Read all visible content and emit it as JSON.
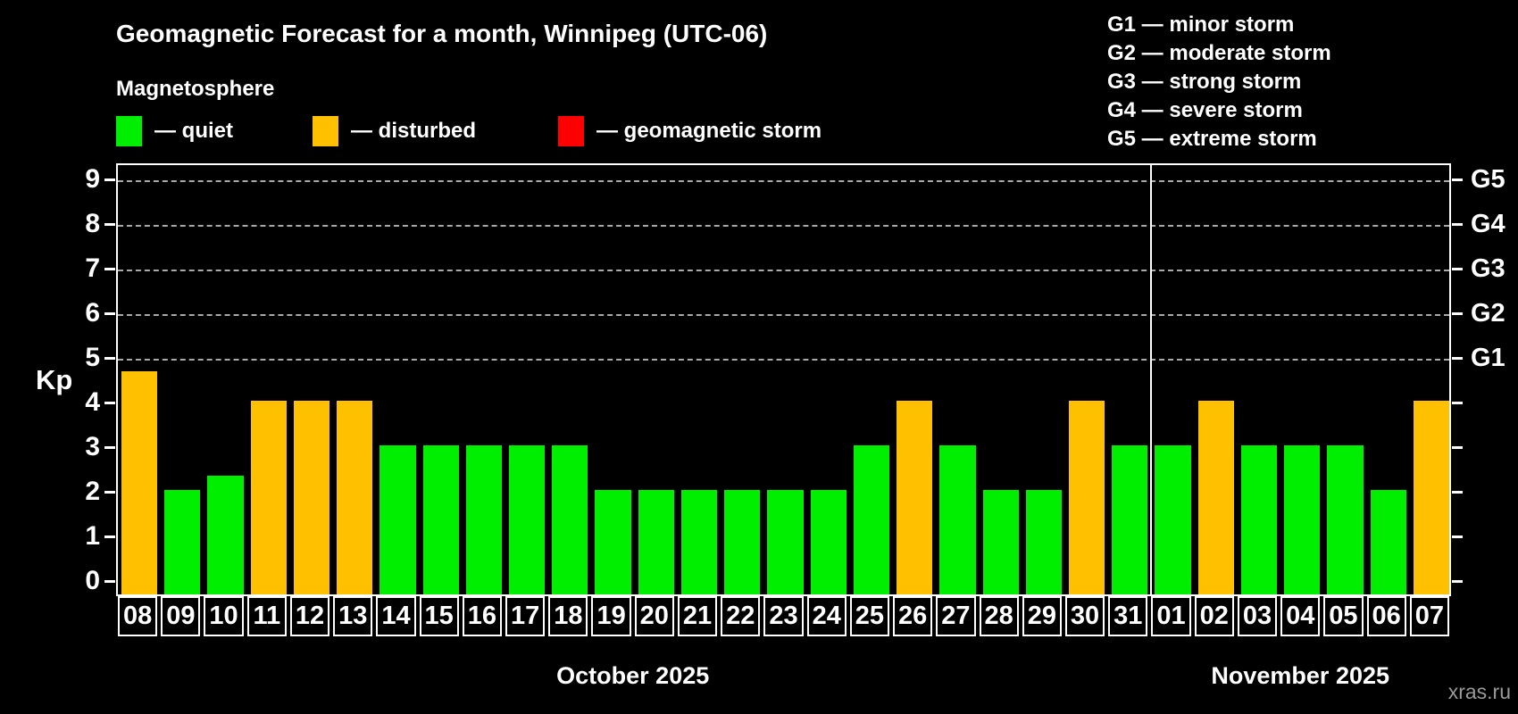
{
  "header": {
    "title": "Geomagnetic Forecast for a month, Winnipeg (UTC-06)",
    "subtitle": "Magnetosphere"
  },
  "legend": {
    "items": [
      {
        "name": "quiet",
        "label": "— quiet",
        "color": "#00ee00",
        "x": 130
      },
      {
        "name": "disturbed",
        "label": "— disturbed",
        "color": "#ffc000",
        "x": 350
      },
      {
        "name": "geomagnetic-storm",
        "label": "— geomagnetic storm",
        "color": "#ff0000",
        "x": 625
      }
    ]
  },
  "g_scale_legend": [
    "G1 — minor storm",
    "G2 — moderate storm",
    "G3 — strong storm",
    "G4 — severe storm",
    "G5 — extreme storm"
  ],
  "axes": {
    "y_label": "Kp",
    "y_ticks": [
      0,
      1,
      2,
      3,
      4,
      5,
      6,
      7,
      8,
      9
    ],
    "grid_levels": [
      5,
      6,
      7,
      8,
      9
    ],
    "right_labels": [
      {
        "text": "G1",
        "kp": 5
      },
      {
        "text": "G2",
        "kp": 6
      },
      {
        "text": "G3",
        "kp": 7
      },
      {
        "text": "G4",
        "kp": 8
      },
      {
        "text": "G5",
        "kp": 9
      }
    ]
  },
  "months": [
    {
      "label": "October 2025",
      "start_index": 0,
      "count": 24
    },
    {
      "label": "November 2025",
      "start_index": 24,
      "count": 7
    }
  ],
  "footer": {
    "watermark": "xras.ru"
  },
  "chart_data": {
    "type": "bar",
    "title": "Geomagnetic Forecast for a month, Winnipeg (UTC-06)",
    "subtitle": "Magnetosphere",
    "xlabel": "",
    "ylabel": "Kp",
    "ylim": [
      0,
      9.4
    ],
    "grid": "dashed horizontal at Kp 5-9 (G1-G5)",
    "legend_position": "top-left swatches; G-scale text top-right",
    "categories": [
      "08",
      "09",
      "10",
      "11",
      "12",
      "13",
      "14",
      "15",
      "16",
      "17",
      "18",
      "19",
      "20",
      "21",
      "22",
      "23",
      "24",
      "25",
      "26",
      "27",
      "28",
      "29",
      "30",
      "31",
      "01",
      "02",
      "03",
      "04",
      "05",
      "06",
      "07"
    ],
    "values": [
      4.67,
      2,
      2.33,
      4,
      4,
      4,
      3,
      3,
      3,
      3,
      3,
      2,
      2,
      2,
      2,
      2,
      2,
      3,
      4,
      3,
      2,
      2,
      4,
      3,
      3,
      4,
      3,
      3,
      3,
      2,
      4
    ],
    "statuses": [
      "disturbed",
      "quiet",
      "quiet",
      "disturbed",
      "disturbed",
      "disturbed",
      "quiet",
      "quiet",
      "quiet",
      "quiet",
      "quiet",
      "quiet",
      "quiet",
      "quiet",
      "quiet",
      "quiet",
      "quiet",
      "quiet",
      "disturbed",
      "quiet",
      "quiet",
      "quiet",
      "disturbed",
      "quiet",
      "quiet",
      "disturbed",
      "quiet",
      "quiet",
      "quiet",
      "quiet",
      "disturbed"
    ],
    "palette": {
      "quiet": "#00ee00",
      "disturbed": "#ffc000",
      "storm": "#ff0000"
    },
    "month_boundary_after_index": 23
  }
}
